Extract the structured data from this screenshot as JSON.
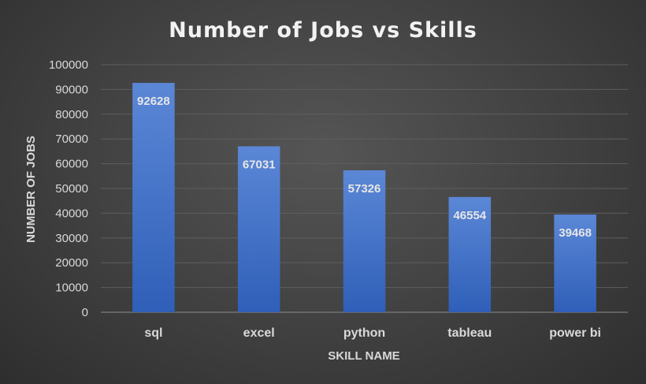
{
  "chart_data": {
    "type": "bar",
    "title": "Number of Jobs vs Skills",
    "xlabel": "SKILL NAME",
    "ylabel": "NUMBER OF JOBS",
    "categories": [
      "sql",
      "excel",
      "python",
      "tableau",
      "power bi"
    ],
    "values": [
      92628,
      67031,
      57326,
      46554,
      39468
    ],
    "ylim": [
      0,
      100000
    ],
    "yticks": [
      0,
      10000,
      20000,
      30000,
      40000,
      50000,
      60000,
      70000,
      80000,
      90000,
      100000
    ],
    "grid": true,
    "data_labels": true,
    "colors": {
      "bar_top": "#5b87d6",
      "bar_bottom": "#2f5fb8",
      "background": "#404040"
    }
  }
}
